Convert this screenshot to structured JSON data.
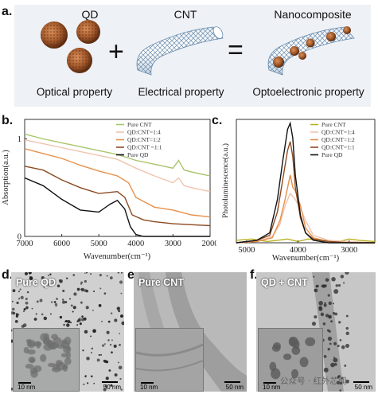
{
  "panel_a": {
    "letter": "a.",
    "qd_title": "QD",
    "cnt_title": "CNT",
    "nano_title": "Nanocomposite",
    "qd_caption": "Optical property",
    "cnt_caption": "Electrical property",
    "nano_caption": "Optoelectronic property",
    "plus": "+",
    "equals": "="
  },
  "panel_b": {
    "letter": "b.",
    "chart_data": {
      "type": "line",
      "ylabel": "Absorption(a.u.)",
      "xlabel": "Wavenumber(cm⁻¹)",
      "x_ticks": [
        "7000",
        "6000",
        "5000",
        "4000",
        "3000",
        "2000"
      ],
      "y_ticks": [
        "0",
        "1"
      ],
      "xlim": [
        7000,
        2000
      ],
      "ylim": [
        0,
        1.2
      ],
      "series": [
        {
          "name": "Pure CNT",
          "color": "#a8c46a",
          "x": [
            7000,
            6500,
            6000,
            5500,
            5000,
            4500,
            4000,
            3500,
            3000,
            2850,
            2700,
            2500,
            2000
          ],
          "y": [
            1.05,
            1.0,
            0.96,
            0.92,
            0.88,
            0.84,
            0.78,
            0.74,
            0.7,
            0.78,
            0.68,
            0.66,
            0.62
          ]
        },
        {
          "name": "QD:CNT=1:4",
          "color": "#f0c4ae",
          "x": [
            7000,
            6500,
            6000,
            5500,
            5000,
            4500,
            4000,
            3500,
            3000,
            2850,
            2700,
            2500,
            2000
          ],
          "y": [
            0.99,
            0.95,
            0.91,
            0.87,
            0.83,
            0.79,
            0.7,
            0.62,
            0.55,
            0.6,
            0.52,
            0.5,
            0.46
          ]
        },
        {
          "name": "QD:CNT=1:2",
          "color": "#e8904a",
          "x": [
            7000,
            6500,
            6000,
            5500,
            5000,
            4500,
            4200,
            4000,
            3500,
            3000,
            2500,
            2000
          ],
          "y": [
            0.9,
            0.85,
            0.8,
            0.73,
            0.67,
            0.62,
            0.55,
            0.4,
            0.3,
            0.27,
            0.22,
            0.2
          ]
        },
        {
          "name": "QD:CNT =1:1",
          "color": "#8b4a20",
          "x": [
            7000,
            6500,
            6000,
            5500,
            5000,
            4500,
            4300,
            4100,
            3800,
            3500,
            3000,
            2500,
            2000
          ],
          "y": [
            0.72,
            0.68,
            0.58,
            0.5,
            0.44,
            0.46,
            0.4,
            0.22,
            0.17,
            0.15,
            0.13,
            0.12,
            0.11
          ]
        },
        {
          "name": "Pure QD",
          "color": "#111111",
          "x": [
            7000,
            6500,
            6000,
            5500,
            5000,
            4700,
            4500,
            4300,
            4150,
            4000,
            3800,
            3500,
            3000,
            2500,
            2000
          ],
          "y": [
            0.6,
            0.52,
            0.38,
            0.27,
            0.25,
            0.33,
            0.37,
            0.28,
            0.1,
            0.02,
            0.0,
            0.0,
            0.0,
            0.0,
            0.0
          ]
        }
      ]
    }
  },
  "panel_c": {
    "letter": "c.",
    "chart_data": {
      "type": "line",
      "ylabel": "Photoluminescence(a.u.)",
      "xlabel": "Wavenumber(cm⁻¹)",
      "x_ticks": [
        "5000",
        "4000",
        "3000"
      ],
      "xlim": [
        5200,
        2500
      ],
      "ylim": [
        0,
        1.0
      ],
      "series": [
        {
          "name": "Pure CNT",
          "color": "#b8b020",
          "x": [
            5200,
            4900,
            4600,
            4400,
            4200,
            4000,
            3800,
            3500,
            3200,
            3000,
            2800,
            2500
          ],
          "y": [
            0.02,
            0.03,
            0.01,
            0.02,
            0.03,
            0.01,
            0.03,
            0.02,
            0.01,
            0.03,
            0.02,
            0.01
          ]
        },
        {
          "name": "QD:CNT=1:4",
          "color": "#f0c4ae",
          "x": [
            5200,
            4800,
            4500,
            4350,
            4250,
            4150,
            4050,
            3950,
            3850,
            3700,
            3400,
            3000,
            2500
          ],
          "y": [
            0.0,
            0.01,
            0.05,
            0.15,
            0.3,
            0.4,
            0.35,
            0.28,
            0.18,
            0.06,
            0.02,
            0.01,
            0.0
          ]
        },
        {
          "name": "QD:CNT=1:2",
          "color": "#e8904a",
          "x": [
            5200,
            4800,
            4500,
            4350,
            4250,
            4150,
            4100,
            4050,
            3950,
            3850,
            3700,
            3400,
            3000,
            2500
          ],
          "y": [
            0.0,
            0.01,
            0.04,
            0.18,
            0.35,
            0.55,
            0.45,
            0.42,
            0.3,
            0.12,
            0.04,
            0.01,
            0.0,
            0.0
          ]
        },
        {
          "name": "QD:CNT=1:1",
          "color": "#8b4a20",
          "x": [
            5200,
            4800,
            4550,
            4400,
            4300,
            4200,
            4150,
            4100,
            4050,
            3950,
            3850,
            3700,
            3400,
            3000,
            2500
          ],
          "y": [
            0.0,
            0.02,
            0.06,
            0.25,
            0.5,
            0.75,
            0.82,
            0.7,
            0.45,
            0.2,
            0.08,
            0.03,
            0.01,
            0.0,
            0.0
          ]
        },
        {
          "name": "Pure QD",
          "color": "#111111",
          "x": [
            5200,
            4800,
            4550,
            4400,
            4300,
            4200,
            4150,
            4100,
            4050,
            3950,
            3850,
            3700,
            3400,
            3000,
            2500
          ],
          "y": [
            0.0,
            0.02,
            0.08,
            0.35,
            0.65,
            0.92,
            0.97,
            0.85,
            0.55,
            0.22,
            0.08,
            0.02,
            0.0,
            0.0,
            0.0
          ]
        }
      ]
    }
  },
  "panel_d": {
    "letter": "d.",
    "tag": "Pure QD",
    "inset_scale": "10 nm",
    "main_scale": "50 nm"
  },
  "panel_e": {
    "letter": "e.",
    "tag": "Pure CNT",
    "inset_scale": "10 nm",
    "main_scale": "50 nm"
  },
  "panel_f": {
    "letter": "f.",
    "tag": "QD + CNT",
    "inset_scale": "10 nm",
    "main_scale": "50 nm",
    "watermark": "公众号 · 红外芯闻"
  },
  "colors": {
    "panel_bg": "#eef1f6",
    "qd_brown": "#a35a2c",
    "cnt_blue": "#6a8db0"
  }
}
